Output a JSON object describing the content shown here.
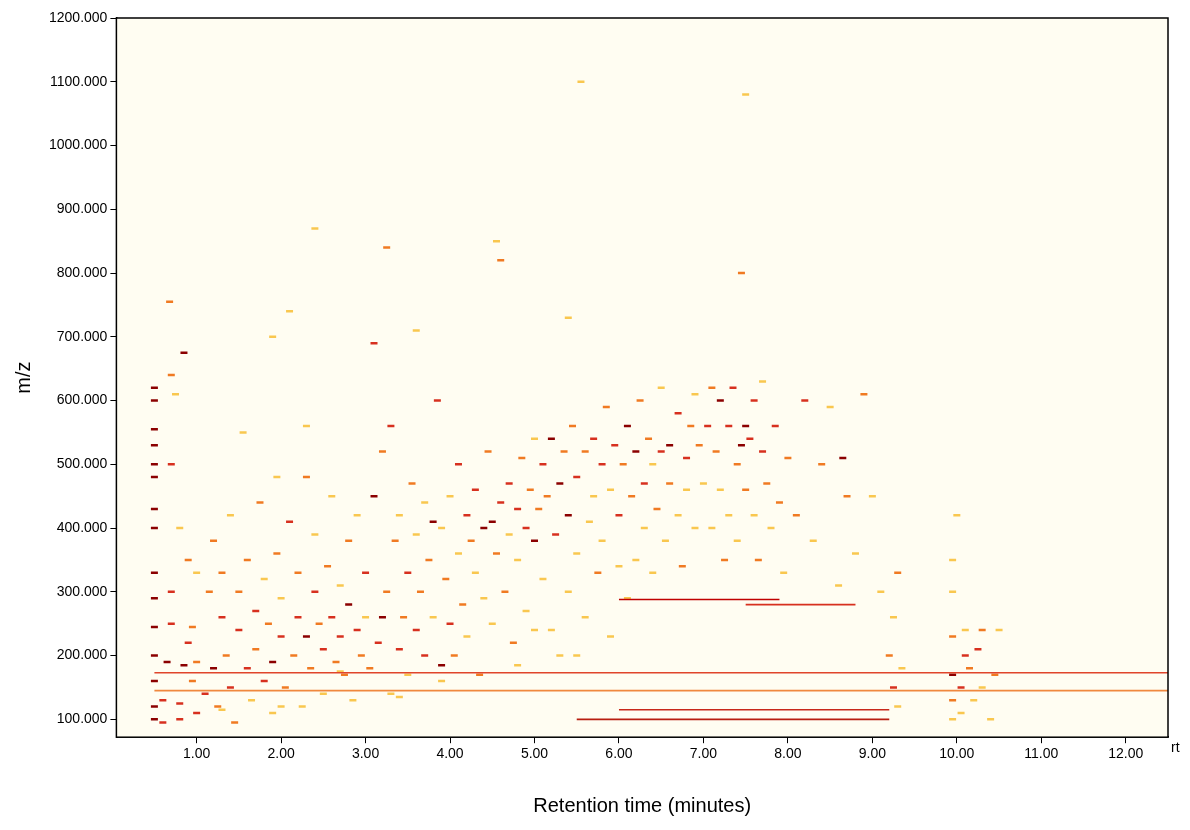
{
  "chart_data": {
    "type": "scatter",
    "x_label": "Retention time (minutes)",
    "y_label": "m/z",
    "annotations": [
      {
        "text": "rt"
      }
    ],
    "xlim": [
      0.05,
      12.5
    ],
    "xticks": [
      {
        "value": 1,
        "label": "1.00"
      },
      {
        "value": 2,
        "label": "2.00"
      },
      {
        "value": 3,
        "label": "3.00"
      },
      {
        "value": 4,
        "label": "4.00"
      },
      {
        "value": 5,
        "label": "5.00"
      },
      {
        "value": 6,
        "label": "6.00"
      },
      {
        "value": 7,
        "label": "7.00"
      },
      {
        "value": 8,
        "label": "8.00"
      },
      {
        "value": 9,
        "label": "9.00"
      },
      {
        "value": 10,
        "label": "10.00"
      },
      {
        "value": 11,
        "label": "11.00"
      },
      {
        "value": 12,
        "label": "12.00"
      }
    ],
    "ylim": [
      72,
      1200
    ],
    "yticks": [
      {
        "value": 100,
        "label": "100.000"
      },
      {
        "value": 200,
        "label": "200.000"
      },
      {
        "value": 300,
        "label": "300.000"
      },
      {
        "value": 400,
        "label": "400.000"
      },
      {
        "value": 500,
        "label": "500.000"
      },
      {
        "value": 600,
        "label": "600.000"
      },
      {
        "value": 700,
        "label": "700.000"
      },
      {
        "value": 800,
        "label": "800.000"
      },
      {
        "value": 900,
        "label": "900.000"
      },
      {
        "value": 1000,
        "label": "1000.000"
      },
      {
        "value": 1100,
        "label": "1100.000"
      },
      {
        "value": 1200,
        "label": "1200.000"
      }
    ],
    "grid": false,
    "series": [
      {
        "type": "scatter",
        "marker": "dash",
        "color": "#8b0000",
        "x": [
          0.5,
          0.5,
          0.5,
          0.5,
          0.5,
          0.5,
          0.5,
          0.5,
          0.5,
          0.5,
          0.5,
          0.5,
          0.5,
          0.5,
          0.5,
          0.65,
          0.85,
          1.2,
          1.9,
          2.3,
          2.8,
          3.2,
          3.9,
          3.1,
          4.4,
          3.8,
          4.5,
          5.0,
          5.2,
          5.4,
          6.1,
          6.6,
          7.2,
          7.45,
          7.5,
          8.65,
          9.95,
          0.85,
          6.2,
          5.3
        ],
        "values": [
          100,
          120,
          160,
          200,
          245,
          290,
          330,
          400,
          430,
          480,
          500,
          530,
          555,
          600,
          620,
          190,
          185,
          180,
          190,
          230,
          280,
          260,
          185,
          450,
          400,
          410,
          410,
          380,
          540,
          420,
          560,
          530,
          600,
          530,
          560,
          510,
          170,
          675,
          520,
          470
        ]
      },
      {
        "type": "scatter",
        "marker": "dash",
        "color": "#d7301f",
        "x": [
          0.6,
          0.6,
          0.7,
          0.7,
          0.7,
          0.8,
          0.8,
          0.9,
          1.0,
          1.1,
          1.3,
          1.4,
          1.5,
          1.6,
          1.7,
          1.8,
          2.0,
          2.1,
          2.2,
          2.4,
          2.5,
          2.6,
          2.7,
          2.9,
          3.0,
          3.15,
          3.3,
          3.4,
          3.5,
          3.6,
          3.7,
          3.85,
          4.0,
          4.1,
          4.2,
          4.3,
          4.6,
          4.7,
          4.8,
          4.9,
          5.1,
          5.25,
          5.5,
          5.7,
          5.8,
          5.95,
          6.3,
          6.5,
          6.7,
          6.8,
          7.05,
          7.3,
          7.35,
          7.55,
          7.6,
          7.7,
          7.85,
          8.2,
          9.25,
          10.05,
          10.1,
          10.25,
          3.1,
          6.0
        ],
        "values": [
          95,
          130,
          250,
          300,
          500,
          100,
          125,
          220,
          110,
          140,
          260,
          150,
          240,
          180,
          270,
          160,
          230,
          410,
          260,
          300,
          210,
          260,
          230,
          240,
          330,
          220,
          560,
          210,
          330,
          240,
          200,
          600,
          250,
          500,
          420,
          460,
          440,
          470,
          430,
          400,
          500,
          390,
          480,
          540,
          500,
          530,
          470,
          520,
          580,
          510,
          560,
          560,
          620,
          540,
          600,
          520,
          560,
          600,
          150,
          150,
          200,
          210,
          690,
          420
        ]
      },
      {
        "type": "scatter",
        "marker": "dash",
        "color": "#f07a22",
        "x": [
          0.7,
          0.68,
          0.9,
          0.95,
          0.95,
          1.0,
          1.15,
          1.2,
          1.25,
          1.3,
          1.35,
          1.45,
          1.5,
          1.6,
          1.7,
          1.75,
          1.85,
          1.95,
          2.05,
          2.15,
          2.2,
          2.3,
          2.35,
          2.45,
          2.55,
          2.65,
          2.75,
          2.8,
          2.95,
          3.05,
          3.2,
          3.25,
          3.35,
          3.45,
          3.55,
          3.65,
          3.75,
          3.95,
          4.05,
          4.15,
          4.25,
          4.35,
          4.45,
          4.55,
          4.65,
          4.75,
          4.85,
          4.95,
          5.05,
          5.15,
          5.35,
          5.45,
          5.6,
          5.75,
          5.85,
          6.05,
          6.15,
          6.25,
          6.35,
          6.45,
          6.6,
          6.75,
          6.85,
          6.95,
          7.1,
          7.15,
          7.25,
          7.4,
          7.5,
          7.65,
          7.75,
          7.9,
          8.0,
          8.1,
          8.4,
          8.7,
          8.9,
          9.2,
          9.3,
          9.95,
          9.95,
          10.15,
          10.3,
          10.45,
          3.25,
          4.6,
          7.45
        ],
        "values": [
          640,
          755,
          350,
          160,
          245,
          190,
          300,
          380,
          120,
          330,
          200,
          95,
          300,
          350,
          210,
          440,
          250,
          360,
          150,
          200,
          330,
          480,
          180,
          250,
          340,
          190,
          170,
          380,
          200,
          180,
          520,
          300,
          380,
          260,
          470,
          300,
          350,
          320,
          200,
          280,
          380,
          170,
          520,
          360,
          300,
          220,
          510,
          460,
          430,
          450,
          520,
          560,
          520,
          330,
          590,
          500,
          450,
          600,
          540,
          430,
          470,
          340,
          560,
          530,
          620,
          520,
          350,
          500,
          460,
          350,
          470,
          440,
          510,
          420,
          500,
          450,
          610,
          200,
          330,
          130,
          230,
          180,
          240,
          170,
          840,
          820,
          800
        ]
      },
      {
        "type": "scatter",
        "marker": "dash",
        "color": "#f9c74f",
        "x": [
          0.75,
          0.8,
          1.0,
          1.4,
          1.55,
          1.65,
          1.8,
          1.9,
          1.95,
          1.9,
          2.0,
          2.1,
          2.25,
          2.4,
          2.5,
          2.6,
          2.7,
          2.85,
          2.9,
          3.0,
          2.4,
          2.3,
          3.3,
          3.4,
          3.5,
          3.6,
          3.7,
          3.8,
          3.9,
          4.0,
          3.6,
          4.1,
          4.2,
          4.3,
          4.4,
          4.5,
          4.55,
          4.7,
          4.8,
          4.9,
          5.0,
          5.0,
          5.1,
          5.2,
          5.3,
          5.4,
          5.5,
          5.55,
          5.6,
          5.65,
          5.7,
          5.8,
          5.9,
          5.9,
          6.0,
          5.4,
          6.1,
          6.2,
          6.3,
          6.4,
          6.4,
          6.5,
          6.55,
          6.7,
          6.8,
          6.9,
          6.9,
          7.0,
          7.1,
          7.2,
          7.3,
          7.4,
          7.6,
          7.7,
          7.8,
          7.95,
          8.3,
          8.5,
          8.6,
          8.8,
          9.0,
          9.1,
          9.25,
          9.3,
          9.35,
          9.95,
          9.95,
          9.95,
          10.0,
          10.05,
          10.1,
          10.2,
          10.3,
          10.4,
          10.5,
          1.3,
          2.0,
          2.7,
          3.4,
          3.9,
          4.8,
          5.5,
          7.5
        ],
        "values": [
          610,
          400,
          330,
          420,
          550,
          130,
          320,
          110,
          480,
          700,
          290,
          740,
          120,
          390,
          140,
          450,
          310,
          130,
          420,
          260,
          870,
          560,
          140,
          420,
          170,
          390,
          440,
          260,
          400,
          450,
          710,
          360,
          230,
          330,
          290,
          250,
          850,
          390,
          350,
          270,
          540,
          240,
          320,
          240,
          200,
          300,
          360,
          1100,
          260,
          410,
          450,
          380,
          460,
          230,
          340,
          730,
          290,
          350,
          400,
          330,
          500,
          620,
          380,
          420,
          460,
          400,
          610,
          470,
          400,
          460,
          420,
          380,
          420,
          630,
          400,
          330,
          380,
          590,
          310,
          360,
          450,
          300,
          260,
          120,
          180,
          100,
          300,
          350,
          420,
          110,
          240,
          130,
          150,
          100,
          240,
          115,
          120,
          175,
          135,
          160,
          185,
          200,
          1080
        ]
      },
      {
        "type": "line",
        "line_style": "solid",
        "color": "#e0452b",
        "x": [
          0.5,
          12.5
        ],
        "values": [
          173,
          173
        ]
      },
      {
        "type": "line",
        "line_style": "solid",
        "color": "#f0883e",
        "x": [
          0.5,
          12.5
        ],
        "values": [
          145,
          145
        ]
      },
      {
        "type": "line",
        "line_style": "solid",
        "color": "#c8281a",
        "x": [
          6.0,
          9.2
        ],
        "values": [
          115,
          115
        ]
      },
      {
        "type": "line",
        "line_style": "solid",
        "color": "#b81e10",
        "x": [
          5.5,
          9.2
        ],
        "values": [
          100,
          100
        ]
      },
      {
        "type": "line",
        "line_style": "solid",
        "color": "#c00000",
        "x": [
          6.0,
          7.9
        ],
        "values": [
          288,
          288
        ]
      },
      {
        "type": "line",
        "line_style": "solid",
        "color": "#d7301f",
        "x": [
          7.5,
          8.8
        ],
        "values": [
          280,
          280
        ]
      }
    ]
  }
}
